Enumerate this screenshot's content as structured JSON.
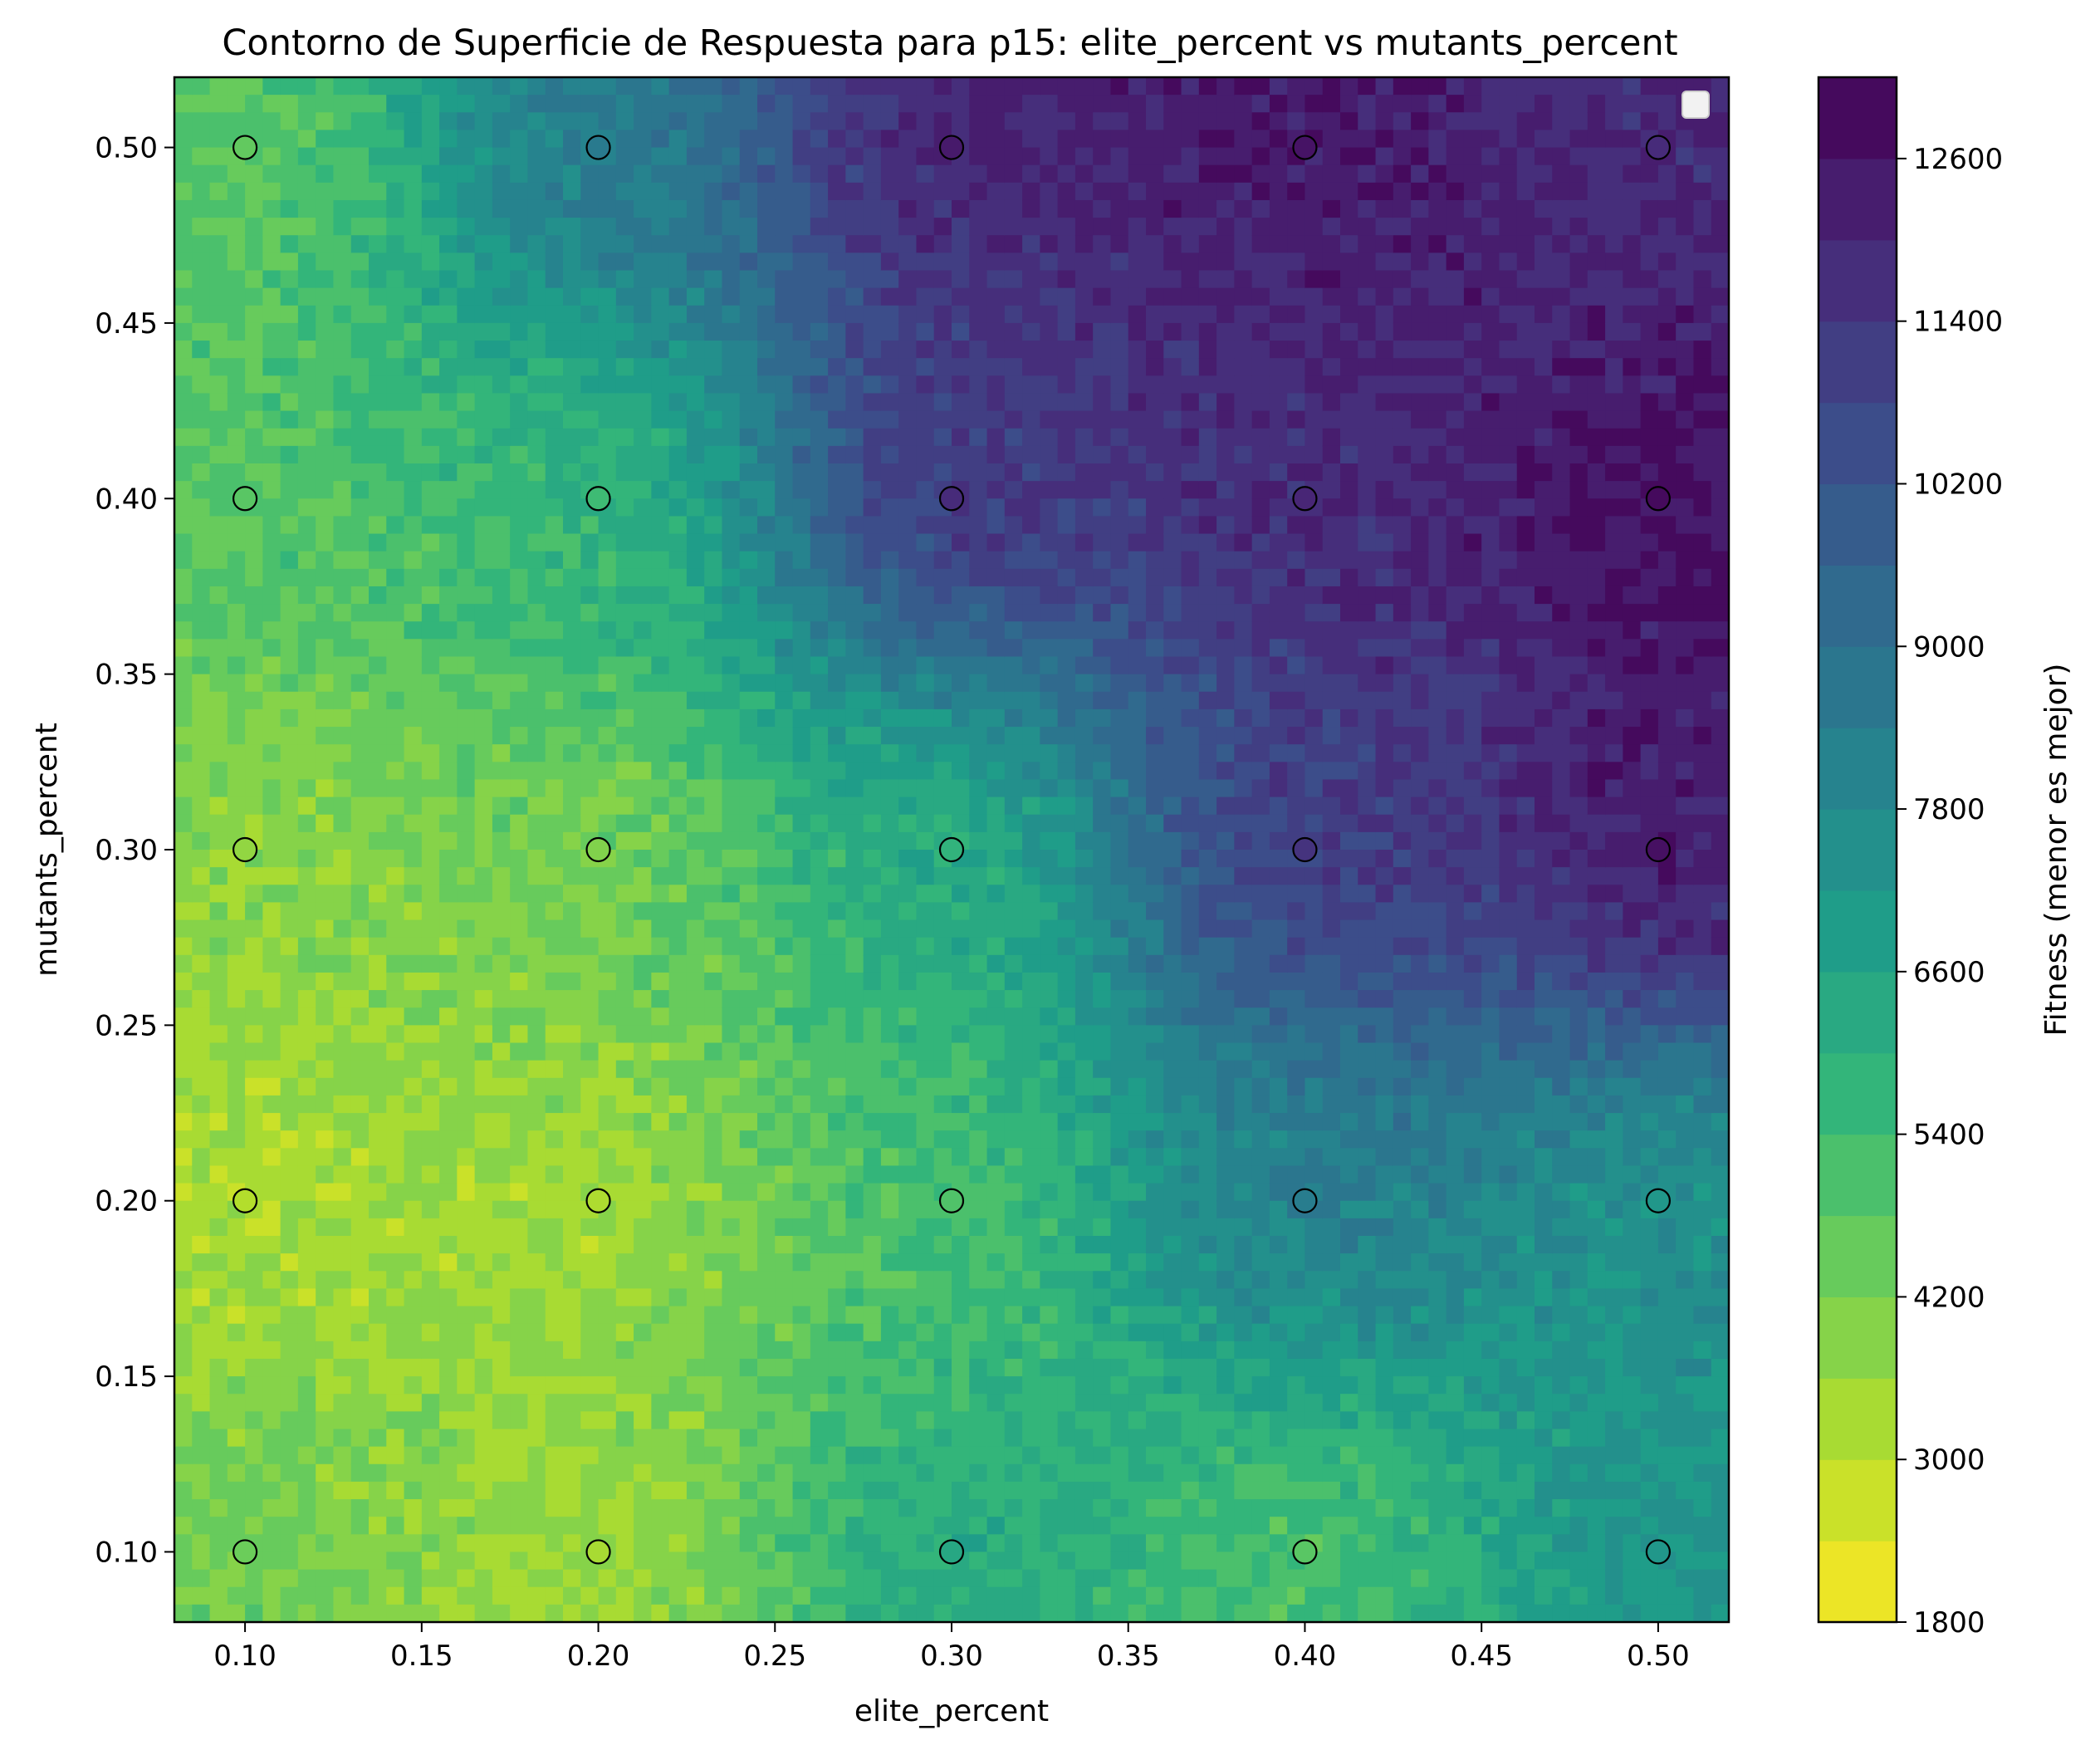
{
  "chart_data": {
    "type": "contour",
    "title": "Contorno de Superficie de Respuesta para p15: elite_percent vs mutants_percent",
    "xlabel": "elite_percent",
    "ylabel": "mutants_percent",
    "colorbar_label": "Fitness (menor es mejor)",
    "xlim": [
      0.08,
      0.52
    ],
    "ylim": [
      0.08,
      0.52
    ],
    "x_ticks": [
      "0.10",
      "0.15",
      "0.20",
      "0.25",
      "0.30",
      "0.35",
      "0.40",
      "0.45",
      "0.50"
    ],
    "y_ticks": [
      "0.10",
      "0.15",
      "0.20",
      "0.25",
      "0.30",
      "0.35",
      "0.40",
      "0.45",
      "0.50"
    ],
    "colorbar_range": [
      1800,
      13200
    ],
    "colorbar_ticks": [
      "1800",
      "3000",
      "4200",
      "5400",
      "6600",
      "7800",
      "9000",
      "10200",
      "11400",
      "12600"
    ],
    "colormap": "viridis_reversed",
    "legend": "top-right (empty)",
    "grid": false,
    "points": [
      {
        "x": 0.1,
        "y": 0.5,
        "fitness": 4600
      },
      {
        "x": 0.2,
        "y": 0.5,
        "fitness": 8500
      },
      {
        "x": 0.3,
        "y": 0.5,
        "fitness": 12400
      },
      {
        "x": 0.4,
        "y": 0.5,
        "fitness": 12600
      },
      {
        "x": 0.5,
        "y": 0.5,
        "fitness": 11800
      },
      {
        "x": 0.1,
        "y": 0.4,
        "fitness": 4800
      },
      {
        "x": 0.2,
        "y": 0.4,
        "fitness": 5400
      },
      {
        "x": 0.3,
        "y": 0.4,
        "fitness": 11800
      },
      {
        "x": 0.4,
        "y": 0.4,
        "fitness": 12000
      },
      {
        "x": 0.5,
        "y": 0.4,
        "fitness": 12900
      },
      {
        "x": 0.1,
        "y": 0.3,
        "fitness": 3700
      },
      {
        "x": 0.2,
        "y": 0.3,
        "fitness": 4000
      },
      {
        "x": 0.3,
        "y": 0.3,
        "fitness": 5800
      },
      {
        "x": 0.4,
        "y": 0.3,
        "fitness": 11500
      },
      {
        "x": 0.5,
        "y": 0.3,
        "fitness": 12700
      },
      {
        "x": 0.1,
        "y": 0.2,
        "fitness": 3100
      },
      {
        "x": 0.2,
        "y": 0.2,
        "fitness": 3200
      },
      {
        "x": 0.3,
        "y": 0.2,
        "fitness": 5000
      },
      {
        "x": 0.4,
        "y": 0.2,
        "fitness": 8400
      },
      {
        "x": 0.5,
        "y": 0.2,
        "fitness": 7200
      },
      {
        "x": 0.1,
        "y": 0.1,
        "fitness": 4400
      },
      {
        "x": 0.2,
        "y": 0.1,
        "fitness": 3300
      },
      {
        "x": 0.3,
        "y": 0.1,
        "fitness": 6400
      },
      {
        "x": 0.4,
        "y": 0.1,
        "fitness": 4800
      },
      {
        "x": 0.5,
        "y": 0.1,
        "fitness": 7200
      }
    ]
  }
}
